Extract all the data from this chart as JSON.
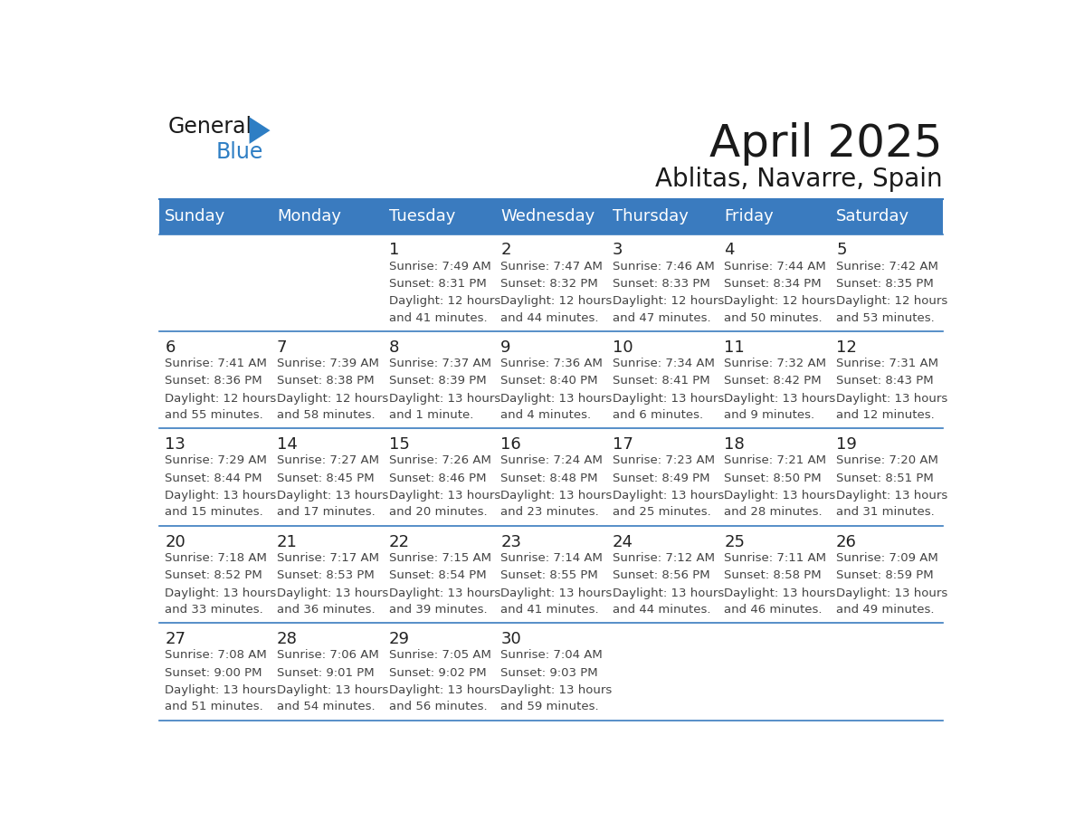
{
  "title": "April 2025",
  "subtitle": "Ablitas, Navarre, Spain",
  "header_color": "#3a7bbf",
  "header_text_color": "#ffffff",
  "border_color": "#3a7bbf",
  "day_names": [
    "Sunday",
    "Monday",
    "Tuesday",
    "Wednesday",
    "Thursday",
    "Friday",
    "Saturday"
  ],
  "days": [
    {
      "day": 1,
      "col": 2,
      "row": 0,
      "sunrise": "7:49 AM",
      "sunset": "8:31 PM",
      "daylight": "12 hours and 41 minutes"
    },
    {
      "day": 2,
      "col": 3,
      "row": 0,
      "sunrise": "7:47 AM",
      "sunset": "8:32 PM",
      "daylight": "12 hours and 44 minutes"
    },
    {
      "day": 3,
      "col": 4,
      "row": 0,
      "sunrise": "7:46 AM",
      "sunset": "8:33 PM",
      "daylight": "12 hours and 47 minutes"
    },
    {
      "day": 4,
      "col": 5,
      "row": 0,
      "sunrise": "7:44 AM",
      "sunset": "8:34 PM",
      "daylight": "12 hours and 50 minutes"
    },
    {
      "day": 5,
      "col": 6,
      "row": 0,
      "sunrise": "7:42 AM",
      "sunset": "8:35 PM",
      "daylight": "12 hours and 53 minutes"
    },
    {
      "day": 6,
      "col": 0,
      "row": 1,
      "sunrise": "7:41 AM",
      "sunset": "8:36 PM",
      "daylight": "12 hours and 55 minutes"
    },
    {
      "day": 7,
      "col": 1,
      "row": 1,
      "sunrise": "7:39 AM",
      "sunset": "8:38 PM",
      "daylight": "12 hours and 58 minutes"
    },
    {
      "day": 8,
      "col": 2,
      "row": 1,
      "sunrise": "7:37 AM",
      "sunset": "8:39 PM",
      "daylight": "13 hours and 1 minute"
    },
    {
      "day": 9,
      "col": 3,
      "row": 1,
      "sunrise": "7:36 AM",
      "sunset": "8:40 PM",
      "daylight": "13 hours and 4 minutes"
    },
    {
      "day": 10,
      "col": 4,
      "row": 1,
      "sunrise": "7:34 AM",
      "sunset": "8:41 PM",
      "daylight": "13 hours and 6 minutes"
    },
    {
      "day": 11,
      "col": 5,
      "row": 1,
      "sunrise": "7:32 AM",
      "sunset": "8:42 PM",
      "daylight": "13 hours and 9 minutes"
    },
    {
      "day": 12,
      "col": 6,
      "row": 1,
      "sunrise": "7:31 AM",
      "sunset": "8:43 PM",
      "daylight": "13 hours and 12 minutes"
    },
    {
      "day": 13,
      "col": 0,
      "row": 2,
      "sunrise": "7:29 AM",
      "sunset": "8:44 PM",
      "daylight": "13 hours and 15 minutes"
    },
    {
      "day": 14,
      "col": 1,
      "row": 2,
      "sunrise": "7:27 AM",
      "sunset": "8:45 PM",
      "daylight": "13 hours and 17 minutes"
    },
    {
      "day": 15,
      "col": 2,
      "row": 2,
      "sunrise": "7:26 AM",
      "sunset": "8:46 PM",
      "daylight": "13 hours and 20 minutes"
    },
    {
      "day": 16,
      "col": 3,
      "row": 2,
      "sunrise": "7:24 AM",
      "sunset": "8:48 PM",
      "daylight": "13 hours and 23 minutes"
    },
    {
      "day": 17,
      "col": 4,
      "row": 2,
      "sunrise": "7:23 AM",
      "sunset": "8:49 PM",
      "daylight": "13 hours and 25 minutes"
    },
    {
      "day": 18,
      "col": 5,
      "row": 2,
      "sunrise": "7:21 AM",
      "sunset": "8:50 PM",
      "daylight": "13 hours and 28 minutes"
    },
    {
      "day": 19,
      "col": 6,
      "row": 2,
      "sunrise": "7:20 AM",
      "sunset": "8:51 PM",
      "daylight": "13 hours and 31 minutes"
    },
    {
      "day": 20,
      "col": 0,
      "row": 3,
      "sunrise": "7:18 AM",
      "sunset": "8:52 PM",
      "daylight": "13 hours and 33 minutes"
    },
    {
      "day": 21,
      "col": 1,
      "row": 3,
      "sunrise": "7:17 AM",
      "sunset": "8:53 PM",
      "daylight": "13 hours and 36 minutes"
    },
    {
      "day": 22,
      "col": 2,
      "row": 3,
      "sunrise": "7:15 AM",
      "sunset": "8:54 PM",
      "daylight": "13 hours and 39 minutes"
    },
    {
      "day": 23,
      "col": 3,
      "row": 3,
      "sunrise": "7:14 AM",
      "sunset": "8:55 PM",
      "daylight": "13 hours and 41 minutes"
    },
    {
      "day": 24,
      "col": 4,
      "row": 3,
      "sunrise": "7:12 AM",
      "sunset": "8:56 PM",
      "daylight": "13 hours and 44 minutes"
    },
    {
      "day": 25,
      "col": 5,
      "row": 3,
      "sunrise": "7:11 AM",
      "sunset": "8:58 PM",
      "daylight": "13 hours and 46 minutes"
    },
    {
      "day": 26,
      "col": 6,
      "row": 3,
      "sunrise": "7:09 AM",
      "sunset": "8:59 PM",
      "daylight": "13 hours and 49 minutes"
    },
    {
      "day": 27,
      "col": 0,
      "row": 4,
      "sunrise": "7:08 AM",
      "sunset": "9:00 PM",
      "daylight": "13 hours and 51 minutes"
    },
    {
      "day": 28,
      "col": 1,
      "row": 4,
      "sunrise": "7:06 AM",
      "sunset": "9:01 PM",
      "daylight": "13 hours and 54 minutes"
    },
    {
      "day": 29,
      "col": 2,
      "row": 4,
      "sunrise": "7:05 AM",
      "sunset": "9:02 PM",
      "daylight": "13 hours and 56 minutes"
    },
    {
      "day": 30,
      "col": 3,
      "row": 4,
      "sunrise": "7:04 AM",
      "sunset": "9:03 PM",
      "daylight": "13 hours and 59 minutes"
    }
  ],
  "logo_text1": "General",
  "logo_text2": "Blue",
  "logo_color1": "#1a1a1a",
  "logo_color2": "#2e7ec4",
  "logo_triangle_color": "#2e7ec4",
  "title_fontsize": 36,
  "subtitle_fontsize": 20,
  "day_name_fontsize": 13,
  "day_number_fontsize": 13,
  "cell_text_fontsize": 9.5,
  "num_rows": 5,
  "num_cols": 7
}
